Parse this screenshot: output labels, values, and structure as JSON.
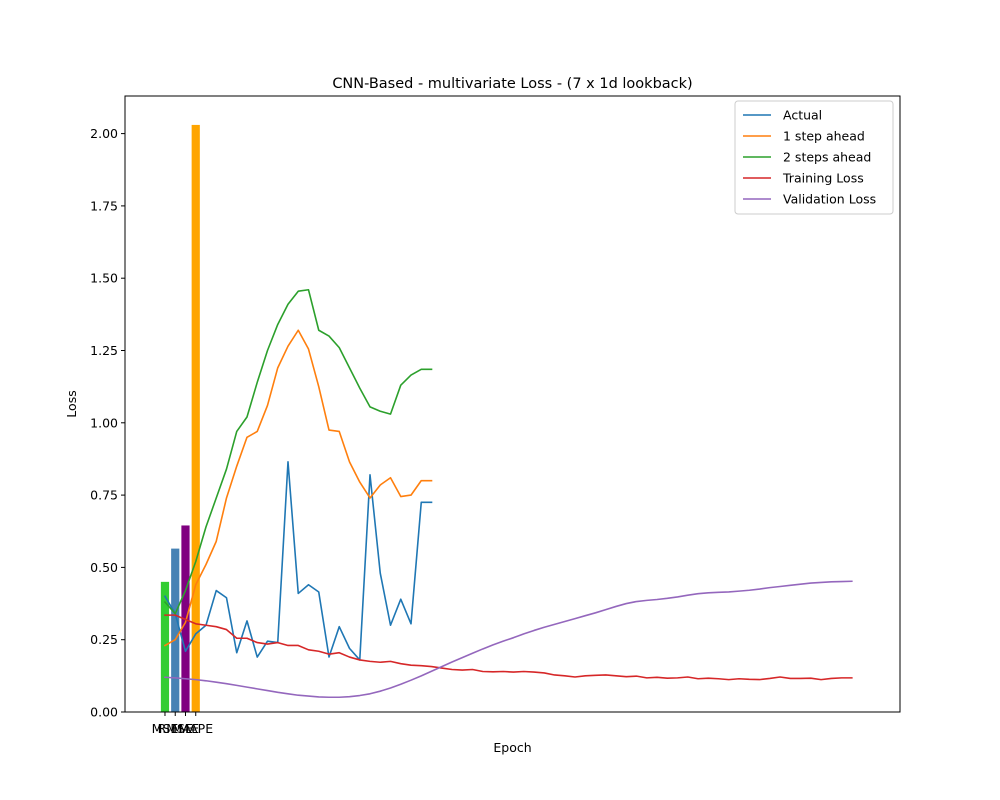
{
  "chart_data": {
    "type": "line",
    "title": "CNN-Based - multivariate Loss - (7 x 1d lookback)",
    "xlabel": "Epoch",
    "ylabel": "Loss",
    "xlim": [
      -3.9,
      71.7
    ],
    "ylim": [
      0,
      2.13
    ],
    "grid": false,
    "legend_position": "top-right",
    "yticks": [
      "0.00",
      "0.25",
      "0.50",
      "0.75",
      "1.00",
      "1.25",
      "1.50",
      "1.75",
      "2.00"
    ],
    "ytick_values": [
      0,
      0.25,
      0.5,
      0.75,
      1.0,
      1.25,
      1.5,
      1.75,
      2.0
    ],
    "bars": {
      "categories": [
        "MSE",
        "RMSE",
        "MAE",
        "MAPE"
      ],
      "positions": [
        0,
        1,
        2,
        3
      ],
      "values": [
        0.45,
        0.565,
        0.645,
        2.03
      ],
      "colors": [
        "#32cd32",
        "#4682b4",
        "#800080",
        "#ffa500"
      ]
    },
    "series": [
      {
        "name": "Actual",
        "color": "#1f77b4",
        "x": [
          0,
          1,
          2,
          3,
          4,
          5,
          6,
          7,
          8,
          9,
          10,
          11,
          12,
          13,
          14,
          15,
          16,
          17,
          18,
          19,
          20,
          21,
          22,
          23,
          24,
          25,
          26
        ],
        "values": [
          0.4,
          0.34,
          0.21,
          0.27,
          0.3,
          0.42,
          0.395,
          0.205,
          0.315,
          0.19,
          0.245,
          0.24,
          0.865,
          0.41,
          0.44,
          0.415,
          0.19,
          0.295,
          0.22,
          0.18,
          0.82,
          0.48,
          0.3,
          0.39,
          0.305,
          0.725,
          0.725
        ]
      },
      {
        "name": "1 step ahead",
        "color": "#ff7f0e",
        "x": [
          0,
          1,
          2,
          3,
          4,
          5,
          6,
          7,
          8,
          9,
          10,
          11,
          12,
          13,
          14,
          15,
          16,
          17,
          18,
          19,
          20,
          21,
          22,
          23,
          24,
          25,
          26
        ],
        "values": [
          0.23,
          0.25,
          0.31,
          0.44,
          0.51,
          0.59,
          0.74,
          0.85,
          0.95,
          0.97,
          1.06,
          1.19,
          1.265,
          1.32,
          1.255,
          1.125,
          0.975,
          0.97,
          0.865,
          0.795,
          0.74,
          0.785,
          0.81,
          0.745,
          0.75,
          0.8,
          0.8
        ]
      },
      {
        "name": "2 steps ahead",
        "color": "#2ca02c",
        "x": [
          0,
          1,
          2,
          3,
          4,
          5,
          6,
          7,
          8,
          9,
          10,
          11,
          12,
          13,
          14,
          15,
          16,
          17,
          18,
          19,
          20,
          21,
          22,
          23,
          24,
          25,
          26
        ],
        "values": [
          0.38,
          0.34,
          0.42,
          0.52,
          0.64,
          0.74,
          0.84,
          0.97,
          1.02,
          1.14,
          1.25,
          1.34,
          1.41,
          1.455,
          1.46,
          1.32,
          1.3,
          1.26,
          1.19,
          1.12,
          1.055,
          1.04,
          1.03,
          1.13,
          1.165,
          1.185,
          1.185
        ]
      },
      {
        "name": "Training Loss",
        "color": "#d62728",
        "x": [
          0,
          1,
          2,
          3,
          4,
          5,
          6,
          7,
          8,
          9,
          10,
          11,
          12,
          13,
          14,
          15,
          16,
          17,
          18,
          19,
          20,
          21,
          22,
          23,
          24,
          25,
          26,
          27,
          28,
          29,
          30,
          31,
          32,
          33,
          34,
          35,
          36,
          37,
          38,
          39,
          40,
          41,
          42,
          43,
          44,
          45,
          46,
          47,
          48,
          49,
          50,
          51,
          52,
          53,
          54,
          55,
          56,
          57,
          58,
          59,
          60,
          61,
          62,
          63,
          64,
          65,
          66,
          67
        ],
        "values": [
          0.335,
          0.335,
          0.32,
          0.305,
          0.3,
          0.295,
          0.285,
          0.255,
          0.255,
          0.24,
          0.235,
          0.24,
          0.23,
          0.23,
          0.215,
          0.21,
          0.2,
          0.205,
          0.19,
          0.18,
          0.175,
          0.172,
          0.175,
          0.167,
          0.162,
          0.16,
          0.157,
          0.152,
          0.147,
          0.145,
          0.147,
          0.14,
          0.139,
          0.14,
          0.138,
          0.14,
          0.138,
          0.135,
          0.128,
          0.125,
          0.121,
          0.125,
          0.127,
          0.128,
          0.125,
          0.122,
          0.124,
          0.118,
          0.12,
          0.117,
          0.118,
          0.121,
          0.115,
          0.117,
          0.115,
          0.112,
          0.115,
          0.113,
          0.112,
          0.116,
          0.121,
          0.116,
          0.116,
          0.117,
          0.112,
          0.116,
          0.118,
          0.118
        ]
      },
      {
        "name": "Validation Loss",
        "color": "#9467bd",
        "x": [
          0,
          1,
          2,
          3,
          4,
          5,
          6,
          7,
          8,
          9,
          10,
          11,
          12,
          13,
          14,
          15,
          16,
          17,
          18,
          19,
          20,
          21,
          22,
          23,
          24,
          25,
          26,
          27,
          28,
          29,
          30,
          31,
          32,
          33,
          34,
          35,
          36,
          37,
          38,
          39,
          40,
          41,
          42,
          43,
          44,
          45,
          46,
          47,
          48,
          49,
          50,
          51,
          52,
          53,
          54,
          55,
          56,
          57,
          58,
          59,
          60,
          61,
          62,
          63,
          64,
          65,
          66,
          67
        ],
        "values": [
          0.12,
          0.118,
          0.115,
          0.112,
          0.108,
          0.103,
          0.098,
          0.092,
          0.086,
          0.08,
          0.074,
          0.068,
          0.063,
          0.058,
          0.055,
          0.052,
          0.051,
          0.051,
          0.053,
          0.057,
          0.063,
          0.072,
          0.083,
          0.096,
          0.11,
          0.125,
          0.141,
          0.157,
          0.173,
          0.188,
          0.203,
          0.218,
          0.232,
          0.245,
          0.257,
          0.27,
          0.282,
          0.293,
          0.303,
          0.313,
          0.323,
          0.333,
          0.343,
          0.354,
          0.365,
          0.375,
          0.382,
          0.386,
          0.389,
          0.393,
          0.398,
          0.404,
          0.409,
          0.412,
          0.414,
          0.415,
          0.418,
          0.421,
          0.425,
          0.43,
          0.434,
          0.438,
          0.442,
          0.446,
          0.448,
          0.45,
          0.451,
          0.452
        ]
      }
    ]
  }
}
